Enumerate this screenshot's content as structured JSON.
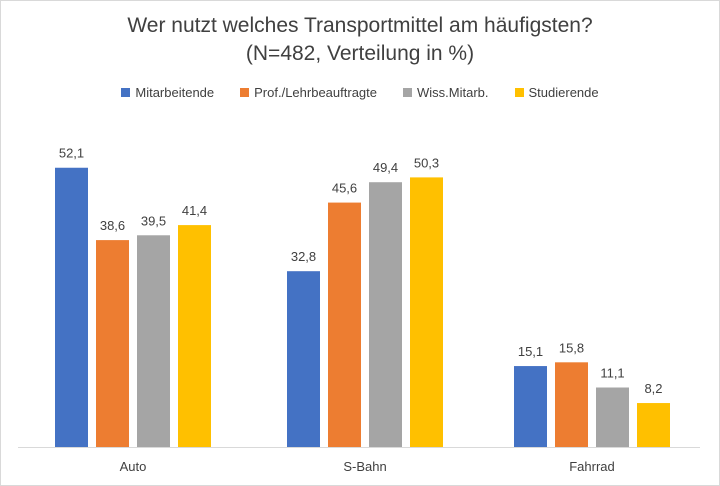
{
  "chart_data": {
    "type": "bar",
    "title": "Wer nutzt welches Transportmittel am häufigsten?",
    "subtitle": "(N=482, Verteilung in %)",
    "xlabel": "",
    "ylabel": "",
    "ylim": [
      0,
      55
    ],
    "grid": false,
    "legend_position": "top",
    "categories": [
      "Auto",
      "S-Bahn",
      "Fahrrad"
    ],
    "series": [
      {
        "name": "Mitarbeitende",
        "color": "#4472c4",
        "values": [
          52.1,
          32.8,
          15.1
        ],
        "labels": [
          "52,1",
          "32,8",
          "15,1"
        ]
      },
      {
        "name": "Prof./Lehrbeauftragte",
        "color": "#ed7d31",
        "values": [
          38.6,
          45.6,
          15.8
        ],
        "labels": [
          "38,6",
          "45,6",
          "15,8"
        ]
      },
      {
        "name": "Wiss.Mitarb.",
        "color": "#a5a5a5",
        "values": [
          39.5,
          49.4,
          11.1
        ],
        "labels": [
          "39,5",
          "49,4",
          "11,1"
        ]
      },
      {
        "name": "Studierende",
        "color": "#ffc000",
        "values": [
          41.4,
          50.3,
          8.2
        ],
        "labels": [
          "41,4",
          "50,3",
          "8,2"
        ]
      }
    ]
  }
}
